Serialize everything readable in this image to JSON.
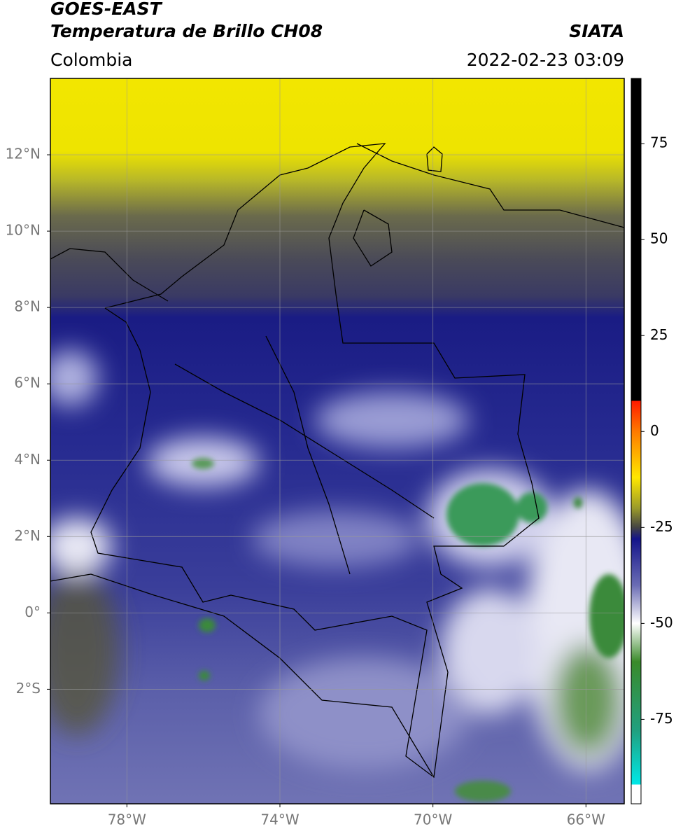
{
  "header": {
    "title": "GOES-EAST",
    "subtitle": "Temperatura de Brillo CH08",
    "region": "Colombia",
    "source": "SIATA",
    "datetime": "2022-02-23 03:09"
  },
  "map": {
    "xlim": [
      -80,
      -65
    ],
    "ylim": [
      -5,
      14
    ],
    "xticks": [
      {
        "value": -78,
        "label": "78°W"
      },
      {
        "value": -74,
        "label": "74°W"
      },
      {
        "value": -70,
        "label": "70°W"
      },
      {
        "value": -66,
        "label": "66°W"
      }
    ],
    "yticks": [
      {
        "value": 12,
        "label": "12°N"
      },
      {
        "value": 10,
        "label": "10°N"
      },
      {
        "value": 8,
        "label": "8°N"
      },
      {
        "value": 6,
        "label": "6°N"
      },
      {
        "value": 4,
        "label": "4°N"
      },
      {
        "value": 2,
        "label": "2°N"
      },
      {
        "value": 0,
        "label": "0°"
      },
      {
        "value": -2,
        "label": "2°S"
      }
    ],
    "grid": true
  },
  "colorbar": {
    "lim": [
      -97,
      92
    ],
    "ticks": [
      75,
      50,
      25,
      0,
      -25,
      -50,
      -75
    ],
    "stops": [
      {
        "value": 92,
        "color": "#000000"
      },
      {
        "value": 8,
        "color": "#000000"
      },
      {
        "value": 8,
        "color": "#ff1a00"
      },
      {
        "value": 0,
        "color": "#ff7a00"
      },
      {
        "value": -12,
        "color": "#ffe800"
      },
      {
        "value": -20,
        "color": "#9a9a2a"
      },
      {
        "value": -25,
        "color": "#444444"
      },
      {
        "value": -28,
        "color": "#14148a"
      },
      {
        "value": -40,
        "color": "#6a6cb4"
      },
      {
        "value": -50,
        "color": "#ffffff"
      },
      {
        "value": -60,
        "color": "#3a8a2a"
      },
      {
        "value": -78,
        "color": "#20a080"
      },
      {
        "value": -92,
        "color": "#00e8e8"
      },
      {
        "value": -92,
        "color": "#ffffff"
      },
      {
        "value": -97,
        "color": "#ffffff"
      }
    ]
  }
}
